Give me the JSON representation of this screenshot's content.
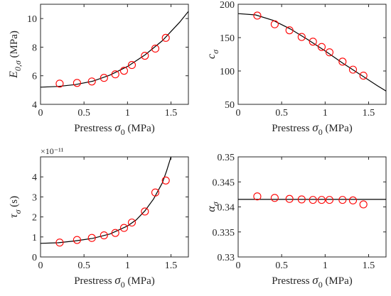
{
  "figure": {
    "xlabel_text": "Prestress",
    "xlabel_symbol": "σ",
    "xlabel_sub": "0",
    "xlabel_unit": "(MPa)"
  },
  "colors": {
    "marker": "#ff0000",
    "curve": "#000000",
    "axes": "#262626"
  },
  "chart_data": [
    {
      "type": "scatter",
      "id": "E",
      "ylabel_symbol": "E",
      "ylabel_sub": "0,σ",
      "ylabel_unit": "(MPa)",
      "xlim": [
        0,
        1.7
      ],
      "ylim": [
        4,
        11
      ],
      "xticks": [
        0,
        0.5,
        1,
        1.5
      ],
      "xtick_labels": [
        "0",
        "0.5",
        "1",
        "1.5"
      ],
      "yticks": [
        4,
        6,
        8,
        10
      ],
      "ytick_labels": [
        "4",
        "6",
        "8",
        "10"
      ],
      "exponent_label": "",
      "points": {
        "x": [
          0.22,
          0.42,
          0.59,
          0.73,
          0.86,
          0.96,
          1.05,
          1.2,
          1.32,
          1.44
        ],
        "y": [
          5.45,
          5.5,
          5.6,
          5.85,
          6.1,
          6.35,
          6.75,
          7.4,
          7.9,
          8.65
        ]
      },
      "fit_curve": {
        "x": [
          0,
          0.2,
          0.4,
          0.6,
          0.8,
          1.0,
          1.2,
          1.4,
          1.6,
          1.7
        ],
        "y": [
          5.2,
          5.25,
          5.38,
          5.62,
          6.05,
          6.65,
          7.45,
          8.45,
          9.75,
          10.5
        ]
      }
    },
    {
      "type": "scatter",
      "id": "c",
      "ylabel_symbol": "c",
      "ylabel_sub": "σ",
      "ylabel_unit": "",
      "xlim": [
        0,
        1.7
      ],
      "ylim": [
        50,
        200
      ],
      "xticks": [
        0,
        0.5,
        1,
        1.5
      ],
      "xtick_labels": [
        "0",
        "0.5",
        "1",
        "1.5"
      ],
      "yticks": [
        50,
        100,
        150,
        200
      ],
      "ytick_labels": [
        "50",
        "100",
        "150",
        "200"
      ],
      "exponent_label": "",
      "points": {
        "x": [
          0.22,
          0.42,
          0.59,
          0.73,
          0.86,
          0.96,
          1.05,
          1.2,
          1.32,
          1.44
        ],
        "y": [
          183,
          170,
          161,
          151,
          144,
          136,
          128,
          114,
          102,
          93
        ]
      },
      "fit_curve": {
        "x": [
          0,
          0.2,
          0.4,
          0.6,
          0.8,
          1.0,
          1.2,
          1.4,
          1.6,
          1.7
        ],
        "y": [
          186,
          184,
          176,
          163,
          147,
          130,
          112,
          95,
          78,
          70
        ]
      }
    },
    {
      "type": "scatter",
      "id": "tau",
      "ylabel_symbol": "τ",
      "ylabel_sub": "σ",
      "ylabel_unit": "(s)",
      "xlim": [
        0,
        1.7
      ],
      "ylim": [
        0,
        5
      ],
      "xticks": [
        0,
        0.5,
        1,
        1.5
      ],
      "xtick_labels": [
        "0",
        "0.5",
        "1",
        "1.5"
      ],
      "yticks": [
        0,
        1,
        2,
        3,
        4
      ],
      "ytick_labels": [
        "0",
        "1",
        "2",
        "3",
        "4"
      ],
      "exponent_label": "×10⁻¹¹",
      "points": {
        "x": [
          0.22,
          0.42,
          0.59,
          0.73,
          0.86,
          0.96,
          1.05,
          1.2,
          1.32,
          1.44
        ],
        "y": [
          0.72,
          0.85,
          0.95,
          1.08,
          1.2,
          1.45,
          1.72,
          2.27,
          3.22,
          3.82
        ]
      },
      "fit_curve": {
        "x": [
          0,
          0.2,
          0.4,
          0.6,
          0.8,
          1.0,
          1.1,
          1.2,
          1.3,
          1.4,
          1.45,
          1.5
        ],
        "y": [
          0.68,
          0.71,
          0.8,
          0.93,
          1.15,
          1.55,
          1.85,
          2.3,
          2.9,
          3.7,
          4.3,
          5.0
        ]
      }
    },
    {
      "type": "scatter",
      "id": "alpha",
      "ylabel_symbol": "α",
      "ylabel_sub": "σ",
      "ylabel_unit": "",
      "xlim": [
        0,
        1.7
      ],
      "ylim": [
        0.33,
        0.35
      ],
      "xticks": [
        0,
        0.5,
        1,
        1.5
      ],
      "xtick_labels": [
        "0",
        "0.5",
        "1",
        "1.5"
      ],
      "yticks": [
        0.33,
        0.335,
        0.34,
        0.345,
        0.35
      ],
      "ytick_labels": [
        "0.33",
        "0.335",
        "0.34",
        "0.345",
        "0.35"
      ],
      "exponent_label": "",
      "points": {
        "x": [
          0.22,
          0.42,
          0.59,
          0.73,
          0.86,
          0.96,
          1.05,
          1.2,
          1.32,
          1.44
        ],
        "y": [
          0.3421,
          0.3418,
          0.3416,
          0.3415,
          0.3414,
          0.3414,
          0.3414,
          0.3414,
          0.3413,
          0.3405
        ]
      },
      "fit_curve": {
        "x": [
          0,
          1.7
        ],
        "y": [
          0.3415,
          0.3415
        ]
      }
    }
  ]
}
